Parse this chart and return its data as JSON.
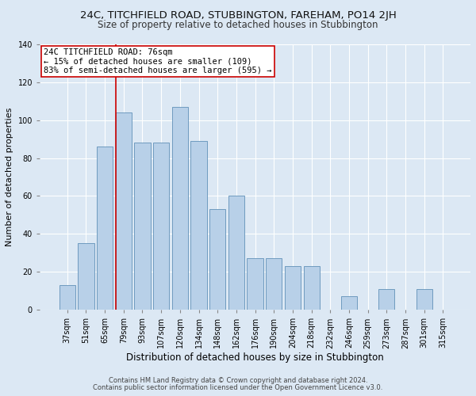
{
  "title": "24C, TITCHFIELD ROAD, STUBBINGTON, FAREHAM, PO14 2JH",
  "subtitle": "Size of property relative to detached houses in Stubbington",
  "xlabel": "Distribution of detached houses by size in Stubbington",
  "ylabel": "Number of detached properties",
  "footer1": "Contains HM Land Registry data © Crown copyright and database right 2024.",
  "footer2": "Contains public sector information licensed under the Open Government Licence v3.0.",
  "categories": [
    "37sqm",
    "51sqm",
    "65sqm",
    "79sqm",
    "93sqm",
    "107sqm",
    "120sqm",
    "134sqm",
    "148sqm",
    "162sqm",
    "176sqm",
    "190sqm",
    "204sqm",
    "218sqm",
    "232sqm",
    "246sqm",
    "259sqm",
    "273sqm",
    "287sqm",
    "301sqm",
    "315sqm"
  ],
  "values": [
    13,
    35,
    86,
    104,
    88,
    88,
    107,
    89,
    53,
    60,
    27,
    27,
    23,
    23,
    0,
    7,
    0,
    11,
    0,
    11,
    0
  ],
  "bar_color": "#b8d0e8",
  "bar_edge_color": "#6090b8",
  "property_sqm": "76sqm",
  "pct_smaller": 15,
  "count_smaller": 109,
  "pct_semi_larger": 83,
  "count_semi_larger": 595,
  "annotation_box_color": "#ffffff",
  "annotation_box_edge": "#cc0000",
  "property_line_color": "#cc0000",
  "ylim": [
    0,
    140
  ],
  "yticks": [
    0,
    20,
    40,
    60,
    80,
    100,
    120,
    140
  ],
  "bg_color": "#dce8f4",
  "plot_bg_color": "#dce8f4",
  "grid_color": "#ffffff",
  "title_fontsize": 9.5,
  "subtitle_fontsize": 8.5,
  "ylabel_fontsize": 8,
  "xlabel_fontsize": 8.5,
  "tick_fontsize": 7,
  "annotation_fontsize": 7.5,
  "footer_fontsize": 6
}
